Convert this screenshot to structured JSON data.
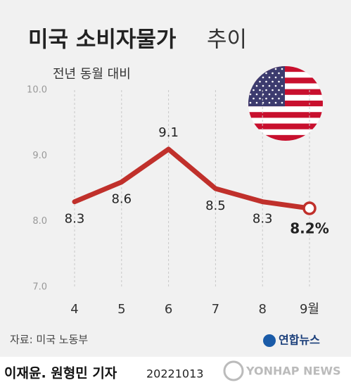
{
  "chart_data": {
    "type": "line",
    "title": "미국 소비자물가",
    "title_suffix": "추이",
    "subtitle": "전년 동월 대비",
    "categories": [
      "4",
      "5",
      "6",
      "7",
      "8",
      "9월"
    ],
    "values": [
      8.3,
      8.6,
      9.1,
      8.5,
      8.3,
      8.2
    ],
    "value_labels": [
      "8.3",
      "8.6",
      "9.1",
      "8.5",
      "8.3",
      "8.2%"
    ],
    "color": "#c0302b",
    "ylim": [
      7,
      10
    ],
    "yticks": [
      {
        "value": 7,
        "label": "7.0"
      },
      {
        "value": 8,
        "label": "8.0"
      },
      {
        "value": 9,
        "label": "9.0"
      },
      {
        "value": 10,
        "label": "10.0"
      }
    ],
    "source": "자료: 미국 노동부",
    "credit": "이재윤. 원형민 기자",
    "date": "20221013",
    "logo": "연합뉴스",
    "logo_en": "YONHAP NEWS"
  }
}
